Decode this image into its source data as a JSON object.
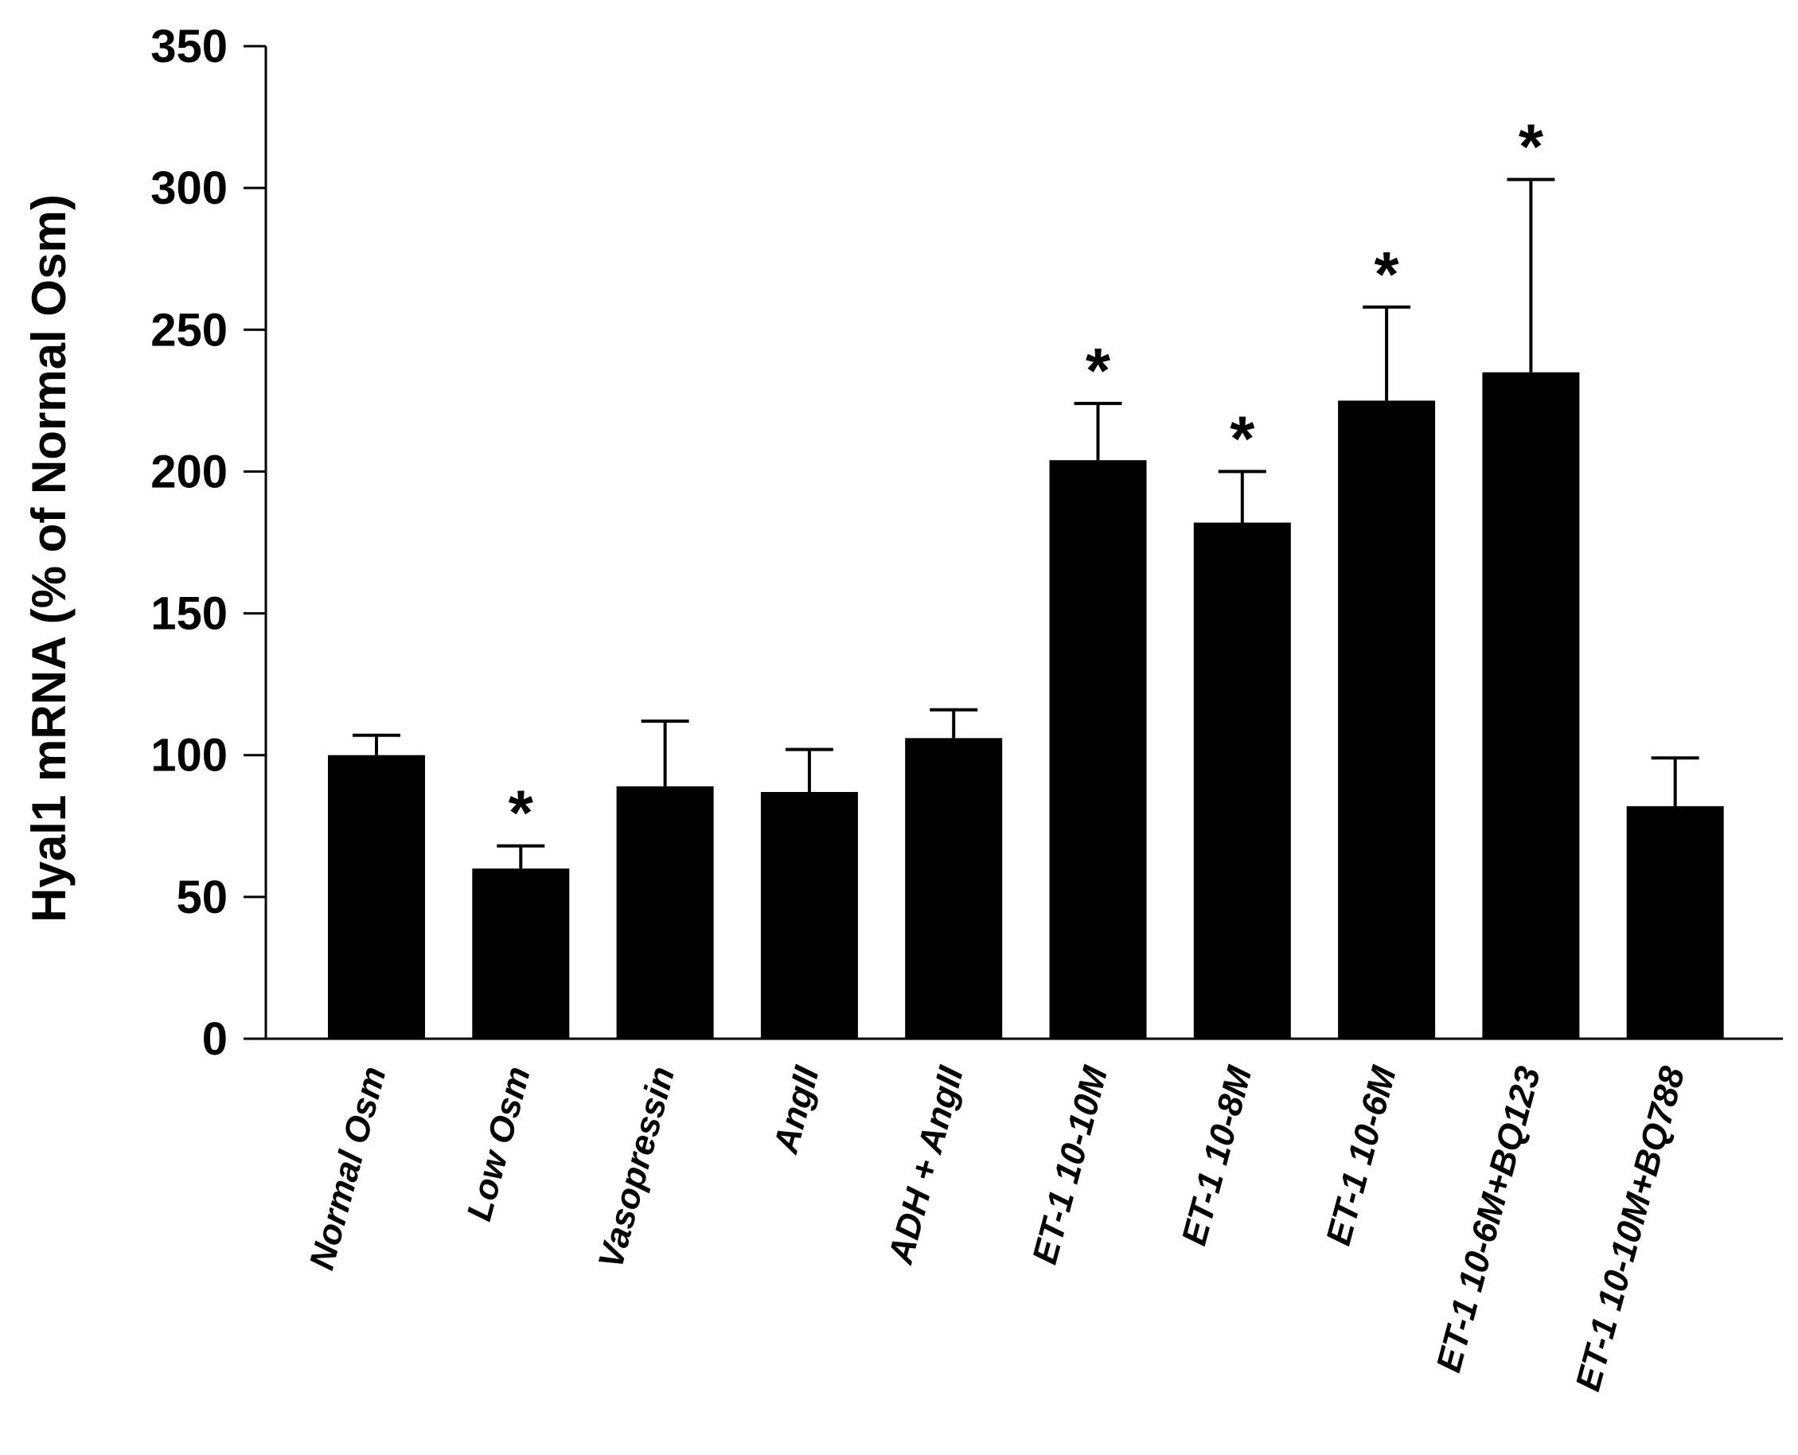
{
  "chart_data": {
    "type": "bar",
    "title": "",
    "xlabel": "",
    "ylabel": "Hyal1 mRNA (% of Normal Osm)",
    "ylim": [
      0,
      350
    ],
    "yticks": [
      0,
      50,
      100,
      150,
      200,
      250,
      300,
      350
    ],
    "grid": false,
    "bar_color": "#000000",
    "categories": [
      "Normal Osm",
      "Low Osm",
      "Vasopressin",
      "AngII",
      "ADH + AngII",
      "ET-1 10-10M",
      "ET-1 10-8M",
      "ET-1 10-6M",
      "ET-1 10-6M+BQ123",
      "ET-1 10-10M+BQ788"
    ],
    "values": [
      100,
      60,
      89,
      87,
      106,
      204,
      182,
      225,
      235,
      82
    ],
    "errors": [
      7,
      8,
      23,
      15,
      10,
      20,
      18,
      33,
      68,
      17
    ],
    "significant": [
      false,
      true,
      false,
      false,
      false,
      true,
      true,
      true,
      true,
      false
    ],
    "significance_symbol": "*"
  }
}
